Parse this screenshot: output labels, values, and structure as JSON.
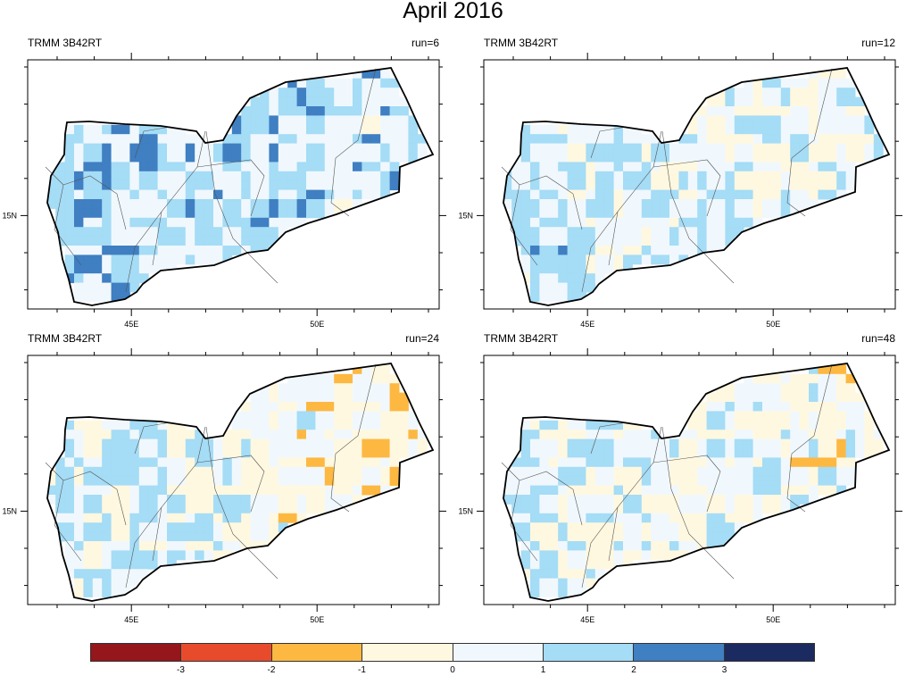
{
  "title": "April 2016",
  "panels": [
    {
      "left_label": "TRMM 3B42RT",
      "right_label": "run=6"
    },
    {
      "left_label": "TRMM 3B42RT",
      "right_label": "run=12"
    },
    {
      "left_label": "TRMM 3B42RT",
      "right_label": "run=24"
    },
    {
      "left_label": "TRMM 3B42RT",
      "right_label": "run=48"
    }
  ],
  "axes": {
    "lon_labels": [
      "45E",
      "50E"
    ],
    "lat_labels": [
      "15N"
    ]
  },
  "colorbar": {
    "colors": [
      "#95161b",
      "#e84b2c",
      "#fdb842",
      "#fff8e0",
      "#f0f8fd",
      "#a5dcf6",
      "#3f7fc2",
      "#1b2b61"
    ],
    "labels": [
      "-3",
      "-2",
      "-1",
      "0",
      "1",
      "2",
      "3"
    ]
  }
}
